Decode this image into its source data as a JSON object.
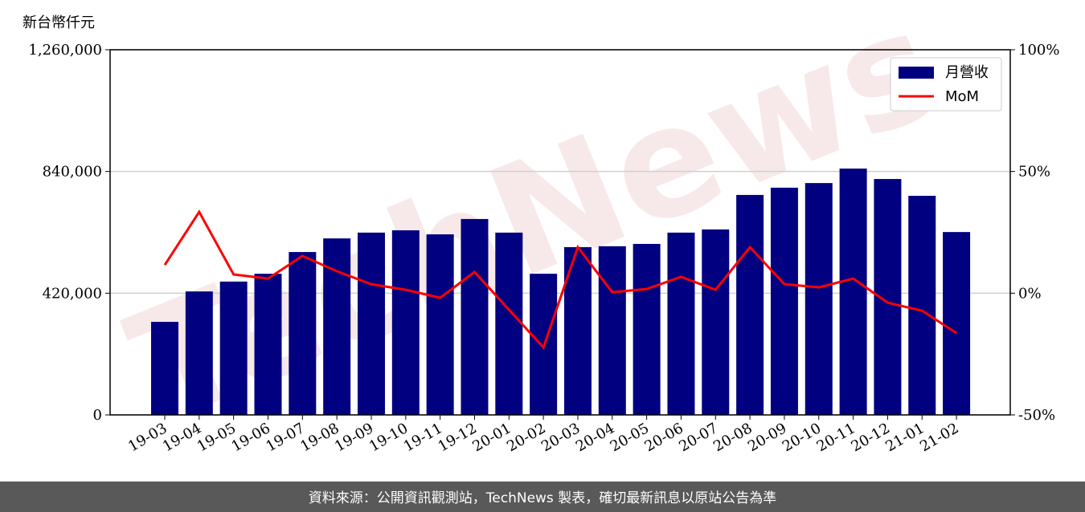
{
  "chart_data": {
    "type": "bar_line",
    "y_label": "新台幣仟元",
    "watermark": "TechNews",
    "source": "資料來源：公開資訊觀測站，TechNews 製表，確切最新訊息以原站公告為準",
    "categories": [
      "19-03",
      "19-04",
      "19-05",
      "19-06",
      "19-07",
      "19-08",
      "19-09",
      "19-10",
      "19-11",
      "19-12",
      "20-01",
      "20-02",
      "20-03",
      "20-04",
      "20-05",
      "20-06",
      "20-07",
      "20-08",
      "20-09",
      "20-10",
      "20-11",
      "20-12",
      "21-01",
      "21-02"
    ],
    "series": [
      {
        "name": "月營收",
        "type": "bar",
        "color": "#000080",
        "values": [
          321000,
          426000,
          460000,
          487000,
          562000,
          609000,
          629000,
          637000,
          623000,
          676000,
          629000,
          487000,
          579000,
          582000,
          590000,
          629000,
          640000,
          759000,
          784000,
          800000,
          850000,
          814000,
          756000,
          631000
        ]
      },
      {
        "name": "MoM",
        "type": "line",
        "axis": "y2",
        "color": "#ff0000",
        "values": [
          11.6,
          33.4,
          7.7,
          6.0,
          15.3,
          9.0,
          3.7,
          1.4,
          -1.9,
          8.7,
          -6.8,
          -22.3,
          18.9,
          0.4,
          1.7,
          6.7,
          1.4,
          18.9,
          3.7,
          2.4,
          6.0,
          -3.9,
          -7.2,
          -16.4
        ]
      }
    ],
    "ylim": [
      0,
      1260000
    ],
    "yticks": [
      {
        "value": 0,
        "label": "0"
      },
      {
        "value": 420000,
        "label": "420,000"
      },
      {
        "value": 840000,
        "label": "840,000"
      },
      {
        "value": 1260000,
        "label": "1,260,000"
      }
    ],
    "y2lim": [
      -50,
      100
    ],
    "y2ticks": [
      {
        "value": -50,
        "label": "-50%"
      },
      {
        "value": 0,
        "label": "0%"
      },
      {
        "value": 50,
        "label": "50%"
      },
      {
        "value": 100,
        "label": "100%"
      }
    ],
    "grid": true,
    "legend": "upper right"
  }
}
